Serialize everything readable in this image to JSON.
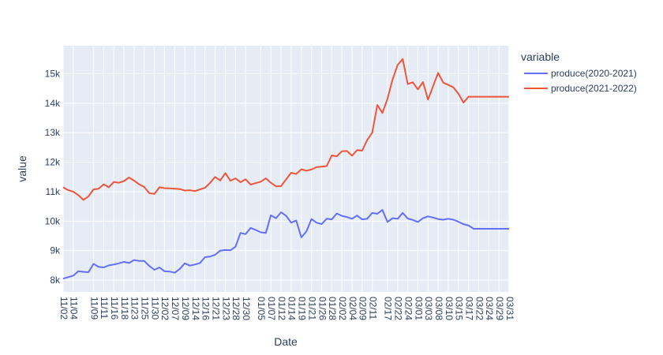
{
  "chart_data": {
    "type": "line",
    "title": "",
    "xlabel": "Date",
    "ylabel": "value",
    "legend_title": "variable",
    "legend_position": "right",
    "grid": true,
    "ylim": [
      7600,
      15950
    ],
    "yticks": [
      8000,
      9000,
      10000,
      11000,
      12000,
      13000,
      14000,
      15000
    ],
    "ytick_labels": [
      "8k",
      "9k",
      "10k",
      "11k",
      "12k",
      "13k",
      "14k",
      "15k"
    ],
    "x": [
      "11/02",
      "11/03",
      "11/04",
      "11/05",
      "11/06",
      "11/07",
      "11/09",
      "11/10",
      "11/11",
      "11/12",
      "11/16",
      "11/17",
      "11/18",
      "11/19",
      "11/23",
      "11/24",
      "11/25",
      "11/26",
      "11/30",
      "12/01",
      "12/02",
      "12/03",
      "12/07",
      "12/08",
      "12/09",
      "12/10",
      "12/14",
      "12/15",
      "12/16",
      "12/17",
      "12/21",
      "12/22",
      "12/23",
      "12/24",
      "12/28",
      "12/29",
      "12/30",
      "12/31",
      "01/04",
      "01/05",
      "01/06",
      "01/07",
      "01/11",
      "01/12",
      "01/13",
      "01/14",
      "01/18",
      "01/19",
      "01/20",
      "01/21",
      "01/25",
      "01/26",
      "01/27",
      "01/28",
      "02/01",
      "02/02",
      "02/03",
      "02/04",
      "02/08",
      "02/09",
      "02/10",
      "02/11",
      "02/15",
      "02/16",
      "02/17",
      "02/18",
      "02/22",
      "02/23",
      "02/24",
      "02/25",
      "03/01",
      "03/02",
      "03/03",
      "03/04",
      "03/08",
      "03/09",
      "03/10",
      "03/11",
      "03/15",
      "03/16",
      "03/17",
      "03/18",
      "03/22",
      "03/23",
      "03/24",
      "03/25",
      "03/29",
      "03/30",
      "03/31"
    ],
    "x_tick_labels": [
      "11/02",
      "11/04",
      "11/09",
      "11/11",
      "11/16",
      "11/18",
      "11/23",
      "11/25",
      "11/30",
      "12/02",
      "12/07",
      "12/09",
      "12/14",
      "12/16",
      "12/21",
      "12/23",
      "12/28",
      "12/30",
      "01/05",
      "01/07",
      "01/12",
      "01/14",
      "01/19",
      "01/21",
      "01/26",
      "01/28",
      "02/02",
      "02/04",
      "02/09",
      "02/11",
      "02/17",
      "02/22",
      "02/24",
      "03/01",
      "03/03",
      "03/08",
      "03/10",
      "03/15",
      "03/17",
      "03/22",
      "03/24",
      "03/29",
      "03/31"
    ],
    "series": [
      {
        "name": "produce(2020-2021)",
        "color": "#636efa",
        "values": [
          8050,
          8100,
          8150,
          8300,
          8280,
          8270,
          8550,
          8450,
          8430,
          8500,
          8530,
          8570,
          8620,
          8580,
          8680,
          8650,
          8650,
          8480,
          8350,
          8430,
          8300,
          8290,
          8250,
          8380,
          8570,
          8490,
          8530,
          8580,
          8780,
          8800,
          8860,
          9000,
          9020,
          9010,
          9130,
          9600,
          9560,
          9770,
          9700,
          9620,
          9600,
          10200,
          10100,
          10300,
          10180,
          9950,
          10020,
          9450,
          9650,
          10070,
          9950,
          9900,
          10080,
          10060,
          10260,
          10180,
          10140,
          10080,
          10190,
          10060,
          10080,
          10280,
          10250,
          10380,
          9970,
          10100,
          10080,
          10280,
          10090,
          10040,
          9970,
          10100,
          10160,
          10120,
          10070,
          10050,
          10080,
          10050,
          9980,
          9900,
          9850,
          9740,
          9740,
          9740,
          9740,
          9740,
          9740,
          9740,
          9740
        ]
      },
      {
        "name": "produce(2021-2022)",
        "color": "#ef553b",
        "values": [
          11150,
          11050,
          11000,
          10880,
          10720,
          10840,
          11080,
          11100,
          11250,
          11150,
          11330,
          11300,
          11360,
          11480,
          11370,
          11250,
          11160,
          10950,
          10920,
          11150,
          11120,
          11110,
          11100,
          11090,
          11040,
          11050,
          11020,
          11080,
          11130,
          11300,
          11500,
          11380,
          11630,
          11370,
          11450,
          11320,
          11420,
          11240,
          11290,
          11340,
          11450,
          11300,
          11180,
          11190,
          11420,
          11640,
          11600,
          11760,
          11710,
          11750,
          11830,
          11850,
          11870,
          12230,
          12200,
          12370,
          12380,
          12220,
          12410,
          12390,
          12750,
          13000,
          13940,
          13670,
          14150,
          14800,
          15300,
          15500,
          14650,
          14710,
          14470,
          14720,
          14120,
          14580,
          15030,
          14700,
          14620,
          14540,
          14320,
          14020,
          14220,
          14220,
          14220,
          14220,
          14220,
          14220,
          14220,
          14220,
          14220
        ]
      }
    ]
  }
}
